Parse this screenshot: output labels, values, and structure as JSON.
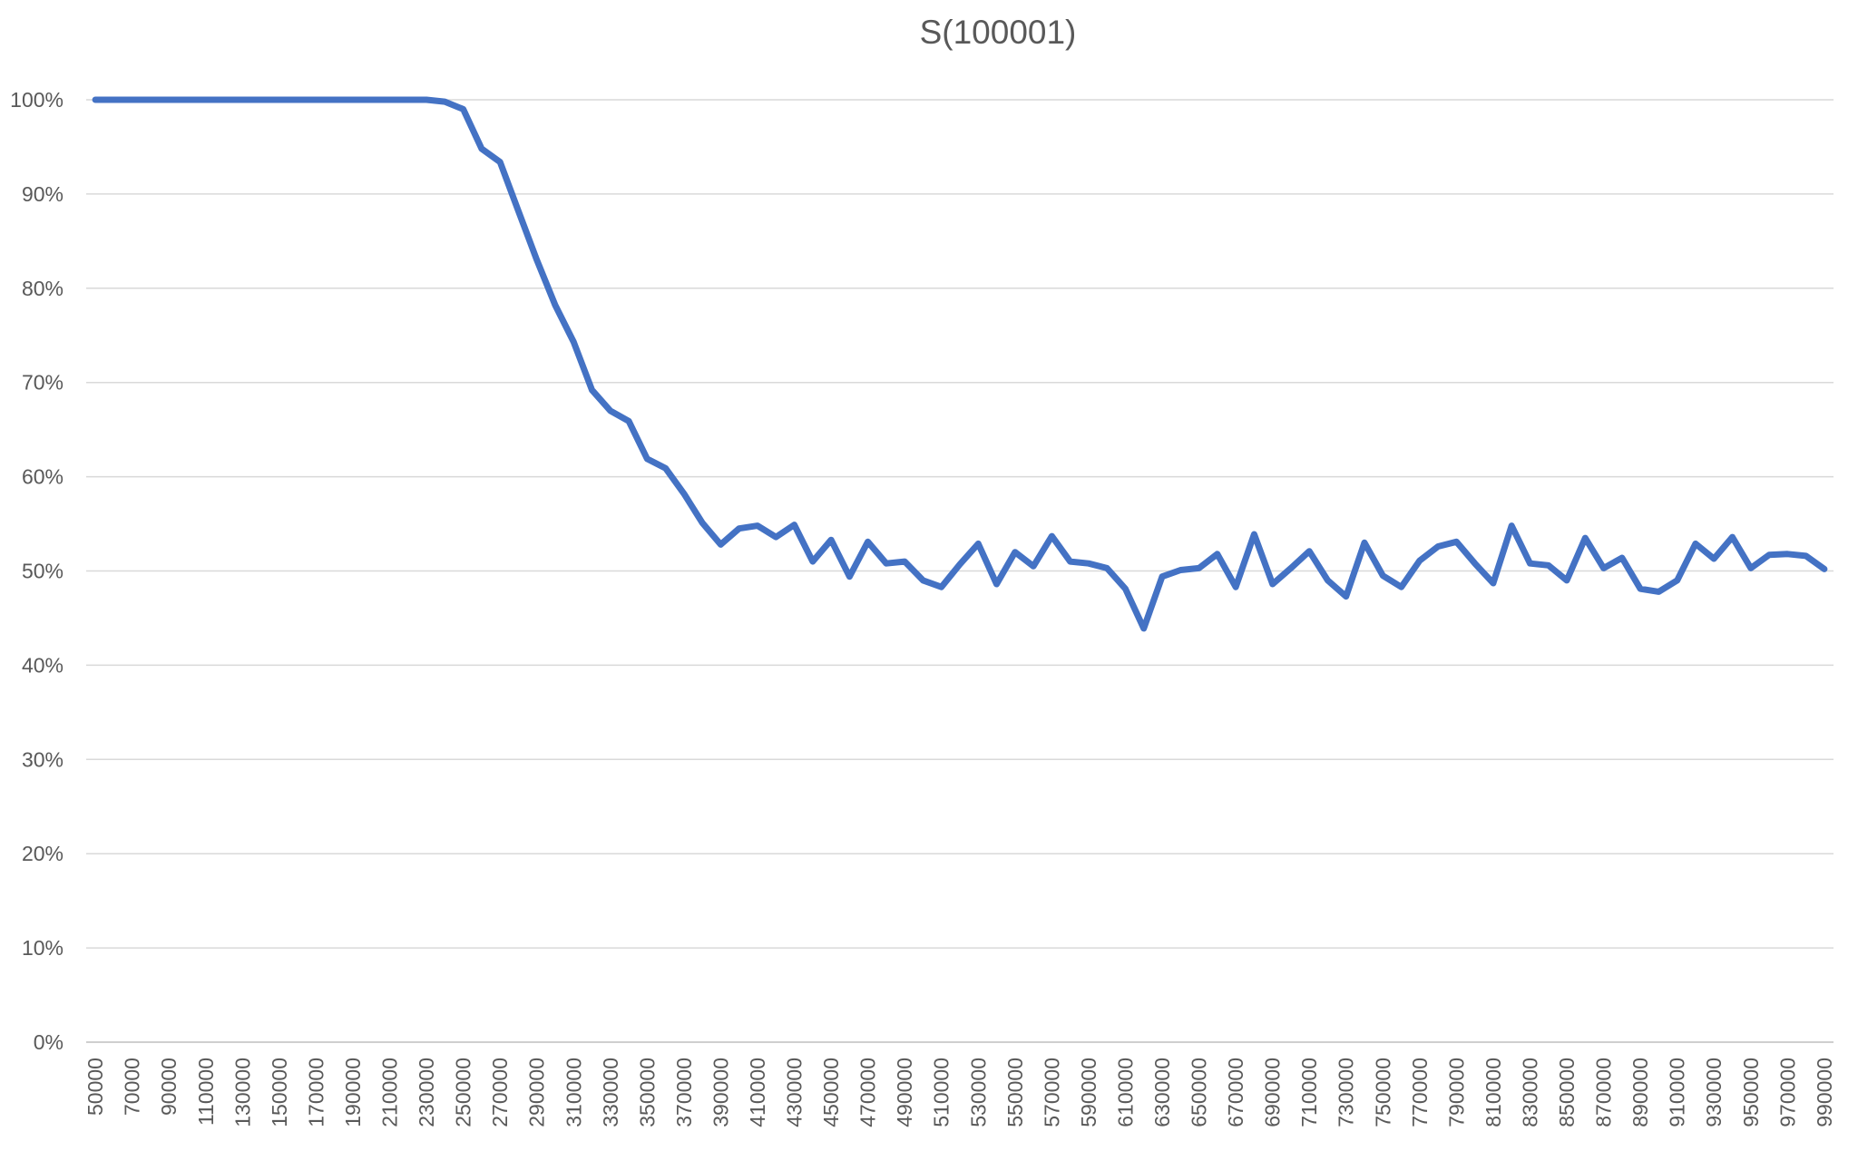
{
  "chart_data": {
    "type": "line",
    "title": "S(100001)",
    "series_name": "S(100001)",
    "xlabel": "",
    "ylabel": "",
    "ylim": [
      0,
      100
    ],
    "y_tick_step": 10,
    "y_tick_labels": [
      "0%",
      "10%",
      "20%",
      "30%",
      "40%",
      "50%",
      "60%",
      "70%",
      "80%",
      "90%",
      "100%"
    ],
    "x_tick_every": 2,
    "grid": true,
    "legend_position": "none",
    "x": [
      50000,
      60000,
      70000,
      80000,
      90000,
      100000,
      110000,
      120000,
      130000,
      140000,
      150000,
      160000,
      170000,
      180000,
      190000,
      200000,
      210000,
      220000,
      230000,
      240000,
      250000,
      260000,
      270000,
      280000,
      290000,
      300000,
      310000,
      320000,
      330000,
      340000,
      350000,
      360000,
      370000,
      380000,
      390000,
      400000,
      410000,
      420000,
      430000,
      440000,
      450000,
      460000,
      470000,
      480000,
      490000,
      500000,
      510000,
      520000,
      530000,
      540000,
      550000,
      560000,
      570000,
      580000,
      590000,
      600000,
      610000,
      620000,
      630000,
      640000,
      650000,
      660000,
      670000,
      680000,
      690000,
      700000,
      710000,
      720000,
      730000,
      740000,
      750000,
      760000,
      770000,
      780000,
      790000,
      800000,
      810000,
      820000,
      830000,
      840000,
      850000,
      860000,
      870000,
      880000,
      890000,
      900000,
      910000,
      920000,
      930000,
      940000,
      950000,
      960000,
      970000,
      980000,
      990000
    ],
    "values": [
      100,
      100,
      100,
      100,
      100,
      100,
      100,
      100,
      100,
      100,
      100,
      100,
      100,
      100,
      100,
      100,
      100,
      100,
      100,
      99.8,
      99.0,
      94.8,
      93.4,
      88.2,
      83.0,
      78.2,
      74.3,
      69.2,
      67.0,
      65.9,
      61.9,
      60.9,
      58.2,
      55.1,
      52.8,
      54.5,
      54.8,
      53.6,
      54.9,
      51.0,
      53.3,
      49.4,
      53.1,
      50.8,
      51.0,
      49.0,
      48.3,
      50.7,
      52.9,
      48.6,
      52.0,
      50.5,
      53.7,
      51.0,
      50.8,
      50.3,
      48.1,
      43.9,
      49.4,
      50.1,
      50.3,
      51.8,
      48.3,
      53.9,
      48.6,
      50.3,
      52.1,
      49.0,
      47.3,
      53.0,
      49.5,
      48.3,
      51.1,
      52.6,
      53.1,
      50.8,
      48.7,
      54.8,
      50.8,
      50.6,
      49.0,
      53.5,
      50.3,
      51.4,
      48.1,
      47.8,
      49.0,
      52.9,
      51.3,
      53.6,
      50.3,
      51.7,
      51.8,
      51.6,
      50.2
    ],
    "colors": {
      "line": "#4472C4",
      "grid": "#D9D9D9",
      "axis_line": "#BFBFBF",
      "text": "#595959",
      "background": "#FFFFFF"
    }
  }
}
